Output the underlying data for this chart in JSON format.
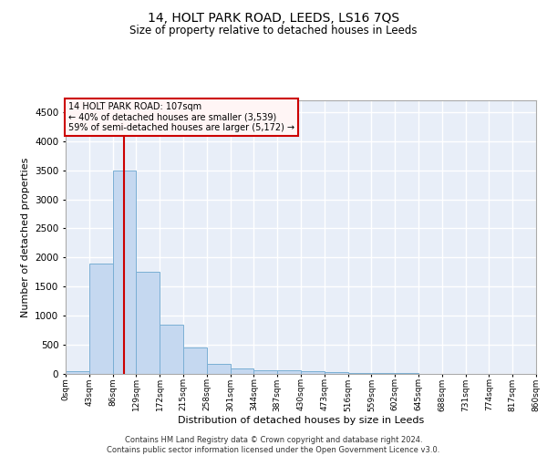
{
  "title": "14, HOLT PARK ROAD, LEEDS, LS16 7QS",
  "subtitle": "Size of property relative to detached houses in Leeds",
  "xlabel": "Distribution of detached houses by size in Leeds",
  "ylabel": "Number of detached properties",
  "bar_color": "#c5d8f0",
  "bar_edge_color": "#7aafd4",
  "background_color": "#e8eef8",
  "grid_color": "#ffffff",
  "bin_edges": [
    0,
    43,
    86,
    129,
    172,
    215,
    258,
    301,
    344,
    387,
    430,
    473,
    516,
    559,
    602,
    645,
    688,
    731,
    774,
    817,
    860
  ],
  "bar_heights": [
    50,
    1900,
    3500,
    1760,
    850,
    460,
    165,
    100,
    70,
    55,
    40,
    30,
    20,
    10,
    8,
    5,
    4,
    3,
    2,
    2
  ],
  "tick_labels": [
    "0sqm",
    "43sqm",
    "86sqm",
    "129sqm",
    "172sqm",
    "215sqm",
    "258sqm",
    "301sqm",
    "344sqm",
    "387sqm",
    "430sqm",
    "473sqm",
    "516sqm",
    "559sqm",
    "602sqm",
    "645sqm",
    "688sqm",
    "731sqm",
    "774sqm",
    "817sqm",
    "860sqm"
  ],
  "ylim": [
    0,
    4700
  ],
  "yticks": [
    0,
    500,
    1000,
    1500,
    2000,
    2500,
    3000,
    3500,
    4000,
    4500
  ],
  "property_sqm": 107,
  "annotation_title": "14 HOLT PARK ROAD: 107sqm",
  "annotation_line1": "← 40% of detached houses are smaller (3,539)",
  "annotation_line2": "59% of semi-detached houses are larger (5,172) →",
  "vline_color": "#cc0000",
  "annotation_box_edge": "#cc0000",
  "footer_line1": "Contains HM Land Registry data © Crown copyright and database right 2024.",
  "footer_line2": "Contains public sector information licensed under the Open Government Licence v3.0."
}
